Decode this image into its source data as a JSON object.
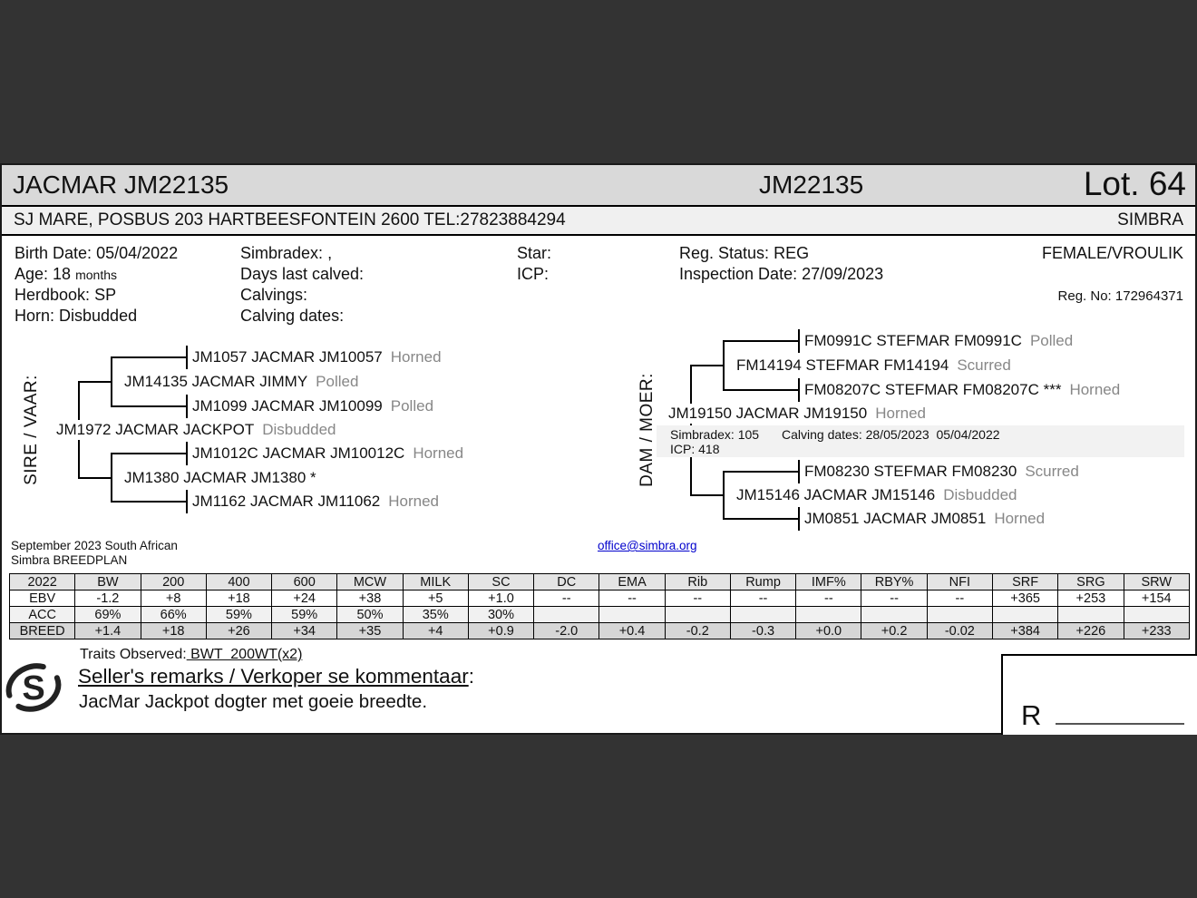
{
  "header": {
    "title": "JACMAR JM22135",
    "animal_id": "JM22135",
    "lot": "Lot. 64"
  },
  "seller_bar": {
    "seller": "SJ MARE, POSBUS 203 HARTBEESFONTEIN 2600 TEL:27823884294",
    "breed": "SIMBRA"
  },
  "info": {
    "birth": {
      "label": "Birth Date:",
      "value": "05/04/2022"
    },
    "age": {
      "label": "Age:",
      "value": "18",
      "unit": "months"
    },
    "herdbook": {
      "label": "Herdbook:",
      "value": "SP"
    },
    "horn": {
      "label": "Horn:",
      "value": "Disbudded"
    },
    "simbradex": {
      "label": "Simbradex:",
      "value": ","
    },
    "days_last_calved": {
      "label": "Days last calved:",
      "value": ""
    },
    "calvings": {
      "label": "Calvings:",
      "value": ""
    },
    "calving_dates": {
      "label": "Calving dates:",
      "value": ""
    },
    "star": {
      "label": "Star:",
      "value": ""
    },
    "icp": {
      "label": "ICP:",
      "value": ""
    },
    "reg_status": {
      "label": "Reg. Status:",
      "value": "REG"
    },
    "inspection_date": {
      "label": "Inspection Date:",
      "value": "27/09/2023"
    },
    "sex": "FEMALE/VROULIK",
    "reg_no": {
      "label": "Reg. No:",
      "value": "172964371"
    }
  },
  "pedigree": {
    "sire": {
      "group_label": "SIRE / VAAR:",
      "parent": {
        "name": "JM1972 JACMAR JACKPOT",
        "status": "Disbudded"
      },
      "grandsire": {
        "name": "JM14135 JACMAR JIMMY",
        "status": "Polled"
      },
      "gs_sire": {
        "name": "JM1057 JACMAR JM10057",
        "status": "Horned"
      },
      "gs_dam": {
        "name": "JM1099 JACMAR JM10099",
        "status": "Polled"
      },
      "granddam": {
        "name": "JM1380 JACMAR JM1380 *",
        "status": ""
      },
      "gd_sire": {
        "name": "JM1012C JACMAR JM10012C",
        "status": "Horned"
      },
      "gd_dam": {
        "name": "JM1162 JACMAR JM11062",
        "status": "Horned"
      }
    },
    "dam": {
      "group_label": "DAM / MOER:",
      "parent": {
        "name": "JM19150 JACMAR JM19150",
        "status": "Horned"
      },
      "note": {
        "simbradex": "Simbradex: 105",
        "calving_dates": "Calving dates: 28/05/2023  05/04/2022",
        "icp": "ICP: 418"
      },
      "grandsire": {
        "name": "FM14194 STEFMAR FM14194",
        "status": "Scurred"
      },
      "gs_sire": {
        "name": "FM0991C STEFMAR FM0991C",
        "status": "Polled"
      },
      "gs_dam": {
        "name": "FM08207C STEFMAR FM08207C ***",
        "status": "Horned"
      },
      "granddam": {
        "name": "JM15146 JACMAR JM15146",
        "status": "Disbudded"
      },
      "gd_sire": {
        "name": "FM08230 STEFMAR FM08230",
        "status": "Scurred"
      },
      "gd_dam": {
        "name": "JM0851 JACMAR JM0851",
        "status": "Horned"
      }
    }
  },
  "breedplan": {
    "heading_line1": "September 2023 South African",
    "heading_line2": "Simbra BREEDPLAN",
    "email": "office@simbra.org",
    "table": {
      "columns": [
        "2022",
        "BW",
        "200",
        "400",
        "600",
        "MCW",
        "MILK",
        "SC",
        "DC",
        "EMA",
        "Rib",
        "Rump",
        "IMF%",
        "RBY%",
        "NFI",
        "SRF",
        "SRG",
        "SRW"
      ],
      "rows": [
        {
          "label": "EBV",
          "values": [
            "-1.2",
            "+8",
            "+18",
            "+24",
            "+38",
            "+5",
            "+1.0",
            "--",
            "--",
            "--",
            "--",
            "--",
            "--",
            "--",
            "+365",
            "+253",
            "+154"
          ]
        },
        {
          "label": "ACC",
          "values": [
            "69%",
            "66%",
            "59%",
            "59%",
            "50%",
            "35%",
            "30%",
            "",
            "",
            "",
            "",
            "",
            "",
            "",
            "",
            "",
            ""
          ]
        },
        {
          "label": "BREED",
          "values": [
            "+1.4",
            "+18",
            "+26",
            "+34",
            "+35",
            "+4",
            "+0.9",
            "-2.0",
            "+0.4",
            "-0.2",
            "-0.3",
            "+0.0",
            "+0.2",
            "-0.02",
            "+384",
            "+226",
            "+233"
          ]
        }
      ]
    }
  },
  "footer": {
    "traits_label": "Traits Observed:",
    "traits_value": " BWT  200WT(x2)",
    "remarks_heading": "Seller's remarks / Verkoper se kommentaar",
    "remarks_colon": ":",
    "remarks_text": "JacMar Jackpot dogter met goeie breedte.",
    "logo_letter": "S",
    "currency_prefix": "R"
  },
  "colors": {
    "dark_bg": "#333333",
    "header_bg": "#d9d9d9",
    "subheader_bg": "#f0f0f0",
    "link": "#0000cc",
    "status_text": "#878787",
    "table_header_bg": "#e4e4e4",
    "table_acc_bg": "#f1f1f1",
    "table_breed_bg": "#d6d6d6",
    "note_bg": "#f2f2f2"
  }
}
